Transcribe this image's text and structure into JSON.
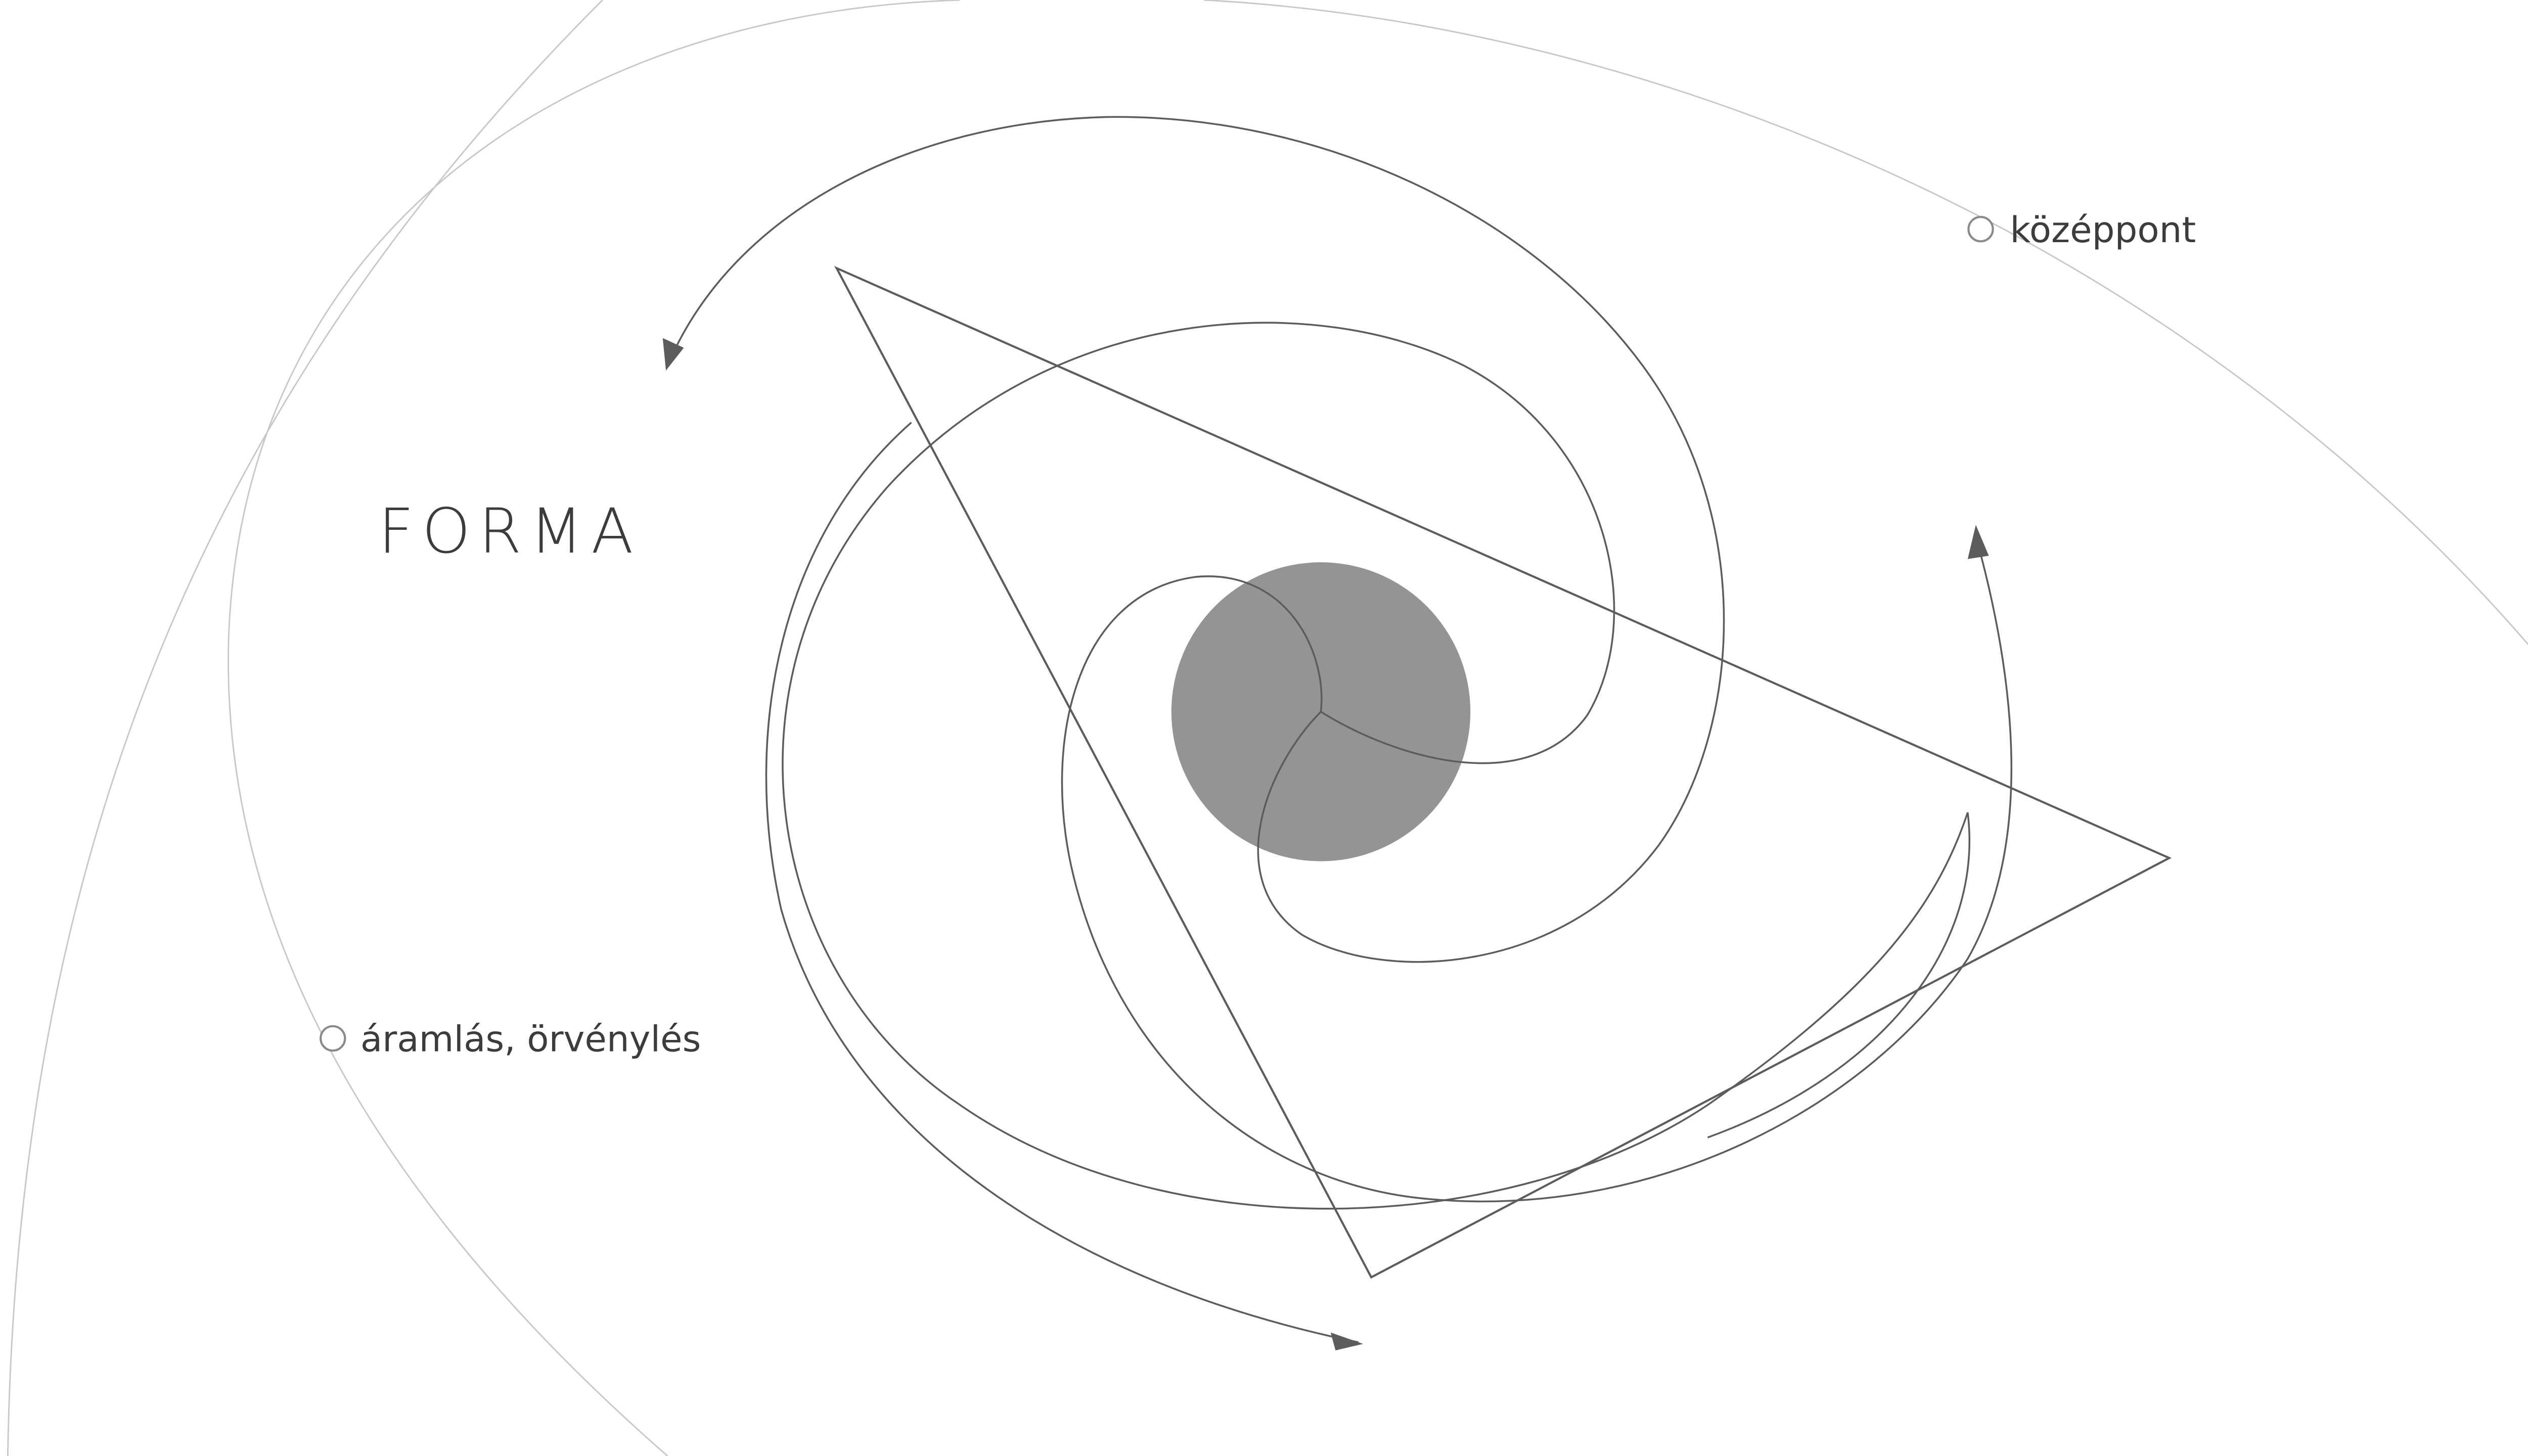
{
  "diagram": {
    "title": "FORMA",
    "labels": {
      "center": "középpont",
      "flow": "áramlás, örvénylés"
    },
    "colors": {
      "background": "#ffffff",
      "outer_guides": "#c8c8c8",
      "lines": "#5c5c5c",
      "center_disc": "#949493",
      "text": "#3c3c3c",
      "marker": "#8a8a8a"
    }
  }
}
